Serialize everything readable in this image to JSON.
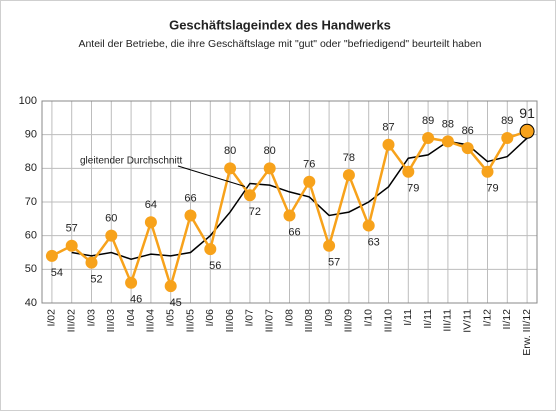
{
  "chart_data": {
    "type": "line",
    "title": "Geschäftslageindex des Handwerks",
    "subtitle": "Anteil der Betriebe, die ihre Geschäftslage mit \"gut\" oder \"befriedigend\" beurteilt haben",
    "categories": [
      "I/02",
      "III/02",
      "I/03",
      "III/03",
      "I/04",
      "III/04",
      "I/05",
      "III/05",
      "I/06",
      "III/06",
      "I/07",
      "III/07",
      "I/08",
      "III/08",
      "I/09",
      "III/09",
      "I/10",
      "III/10",
      "I/11",
      "II/11",
      "III/11",
      "IV/11",
      "I/12",
      "II/12",
      "Erw. III/12"
    ],
    "series": [
      {
        "name": "Geschäftslageindex",
        "color": "#f7a21b",
        "values": [
          54,
          57,
          52,
          60,
          46,
          64,
          45,
          66,
          56,
          80,
          72,
          80,
          66,
          76,
          57,
          78,
          63,
          87,
          79,
          89,
          88,
          86,
          79,
          89,
          91
        ]
      },
      {
        "name": "gleitender Durchschnitt",
        "color": "#000000",
        "values": [
          null,
          55,
          54,
          55,
          53,
          54.5,
          54,
          55,
          60,
          67,
          75.5,
          75,
          73,
          71.5,
          66,
          67,
          70,
          74.5,
          83,
          84,
          88,
          87,
          82,
          83.5,
          89
        ]
      }
    ],
    "ylim": [
      40,
      100
    ],
    "yticks": [
      40,
      50,
      60,
      70,
      80,
      90,
      100
    ],
    "grid": true
  }
}
